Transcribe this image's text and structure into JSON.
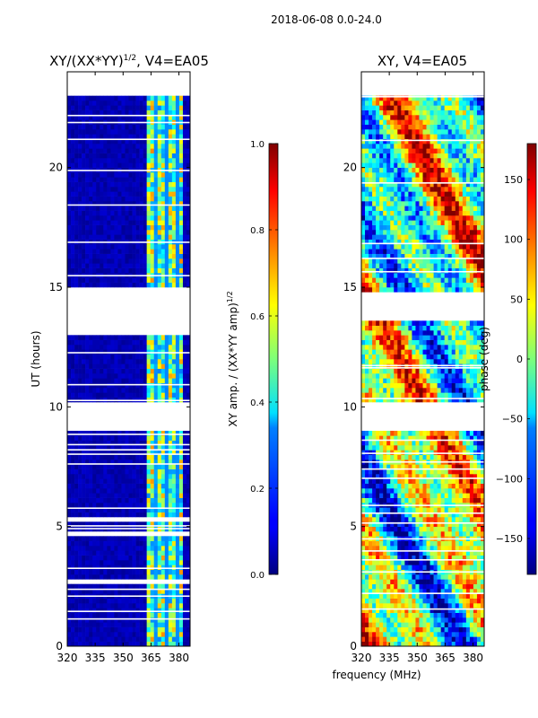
{
  "suptitle": "2018-06-08 0.0-24.0",
  "xlabel_shared": "frequency (MHz)",
  "chart_data": [
    {
      "type": "heatmap",
      "title_main": "XY/(XX*YY)",
      "title_sup": "1/2",
      "title_suffix": ", V4=EA05",
      "ylabel": "UT (hours)",
      "xlim": [
        320,
        386
      ],
      "ylim": [
        0,
        24
      ],
      "xticks": [
        320,
        335,
        350,
        365,
        380
      ],
      "yticks": [
        0,
        5,
        10,
        15,
        20
      ],
      "data_rows": [
        [
          0.1,
          2.6
        ],
        [
          2.8,
          4.5
        ],
        [
          4.8,
          5.1
        ],
        [
          5.5,
          9.0
        ],
        [
          10.3,
          10.9
        ],
        [
          11.0,
          13.0
        ],
        [
          15.1,
          23.0
        ]
      ],
      "active_freq_range": [
        362,
        382
      ],
      "colorbar": {
        "label_main": "XY amp. / (XX*YY amp)",
        "label_sup": "1/2",
        "range": [
          0.0,
          1.0
        ],
        "ticks": [
          "0.0",
          "0.2",
          "0.4",
          "0.6",
          "0.8",
          "1.0"
        ],
        "colormap": "jet"
      }
    },
    {
      "type": "heatmap",
      "title": "XY, V4=EA05",
      "xlim": [
        320,
        386
      ],
      "ylim": [
        0,
        24
      ],
      "xticks": [
        320,
        335,
        350,
        365,
        380
      ],
      "yticks": [
        0,
        5,
        10,
        15,
        20
      ],
      "data_rows": [
        [
          0.1,
          5.1
        ],
        [
          5.3,
          9.0
        ],
        [
          10.3,
          13.5
        ],
        [
          14.8,
          23.0
        ]
      ],
      "colorbar": {
        "label": "phase (deg)",
        "range": [
          -180,
          180
        ],
        "ticks": [
          "150",
          "100",
          "50",
          "0",
          "−50",
          "−100",
          "−150"
        ],
        "tick_values": [
          150,
          100,
          50,
          0,
          -50,
          -100,
          -150
        ],
        "colormap": "jet"
      }
    }
  ]
}
